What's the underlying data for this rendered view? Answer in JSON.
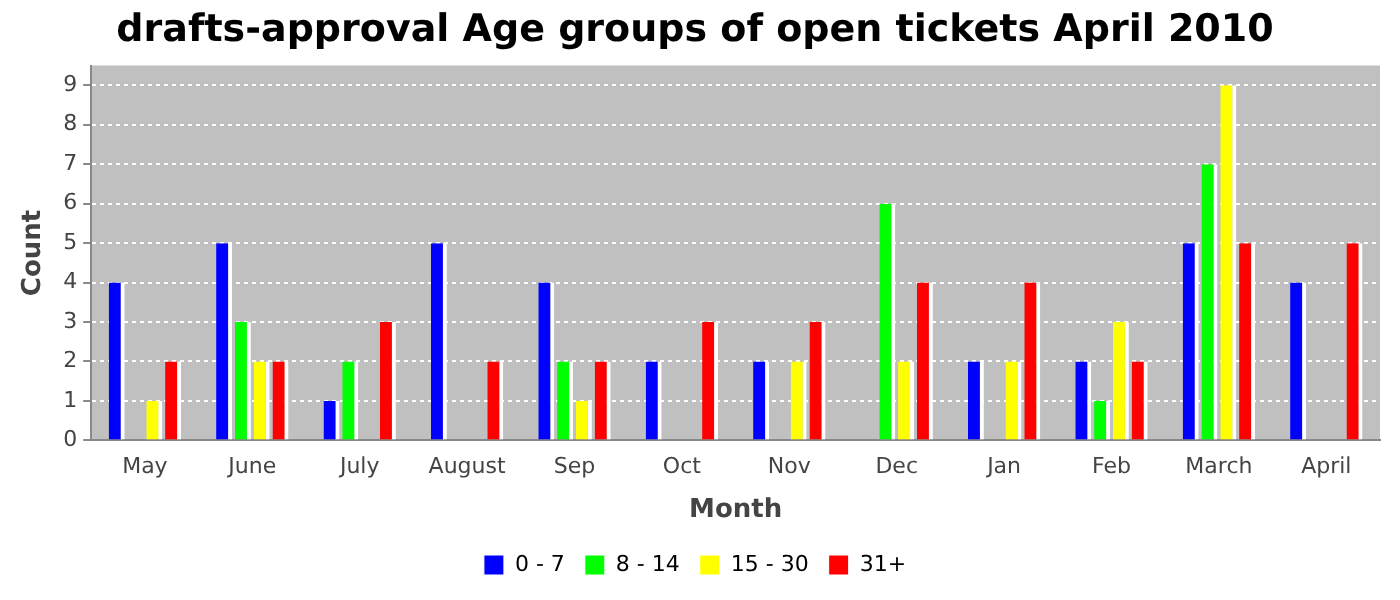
{
  "chart_data": {
    "type": "bar",
    "title": "drafts-approval Age groups of open tickets April 2010",
    "xlabel": "Month",
    "ylabel": "Count",
    "categories": [
      "May",
      "June",
      "July",
      "August",
      "Sep",
      "Oct",
      "Nov",
      "Dec",
      "Jan",
      "Feb",
      "March",
      "April"
    ],
    "series": [
      {
        "name": "0 - 7",
        "color": "#0000ff",
        "values": [
          4,
          5,
          1,
          5,
          4,
          2,
          2,
          0,
          2,
          2,
          5,
          4
        ]
      },
      {
        "name": "8 - 14",
        "color": "#00ff00",
        "values": [
          0,
          3,
          2,
          0,
          2,
          0,
          0,
          6,
          0,
          1,
          7,
          0
        ]
      },
      {
        "name": "15 - 30",
        "color": "#ffff00",
        "values": [
          1,
          2,
          0,
          0,
          1,
          0,
          2,
          2,
          2,
          3,
          9,
          0
        ]
      },
      {
        "name": "31+",
        "color": "#ff0000",
        "values": [
          2,
          2,
          3,
          2,
          2,
          3,
          3,
          4,
          4,
          2,
          5,
          5
        ]
      }
    ],
    "ylim": [
      0,
      9.5
    ],
    "yticks": [
      0,
      1,
      2,
      3,
      4,
      5,
      6,
      7,
      8,
      9
    ],
    "grid": "y",
    "legend": "bottom"
  }
}
